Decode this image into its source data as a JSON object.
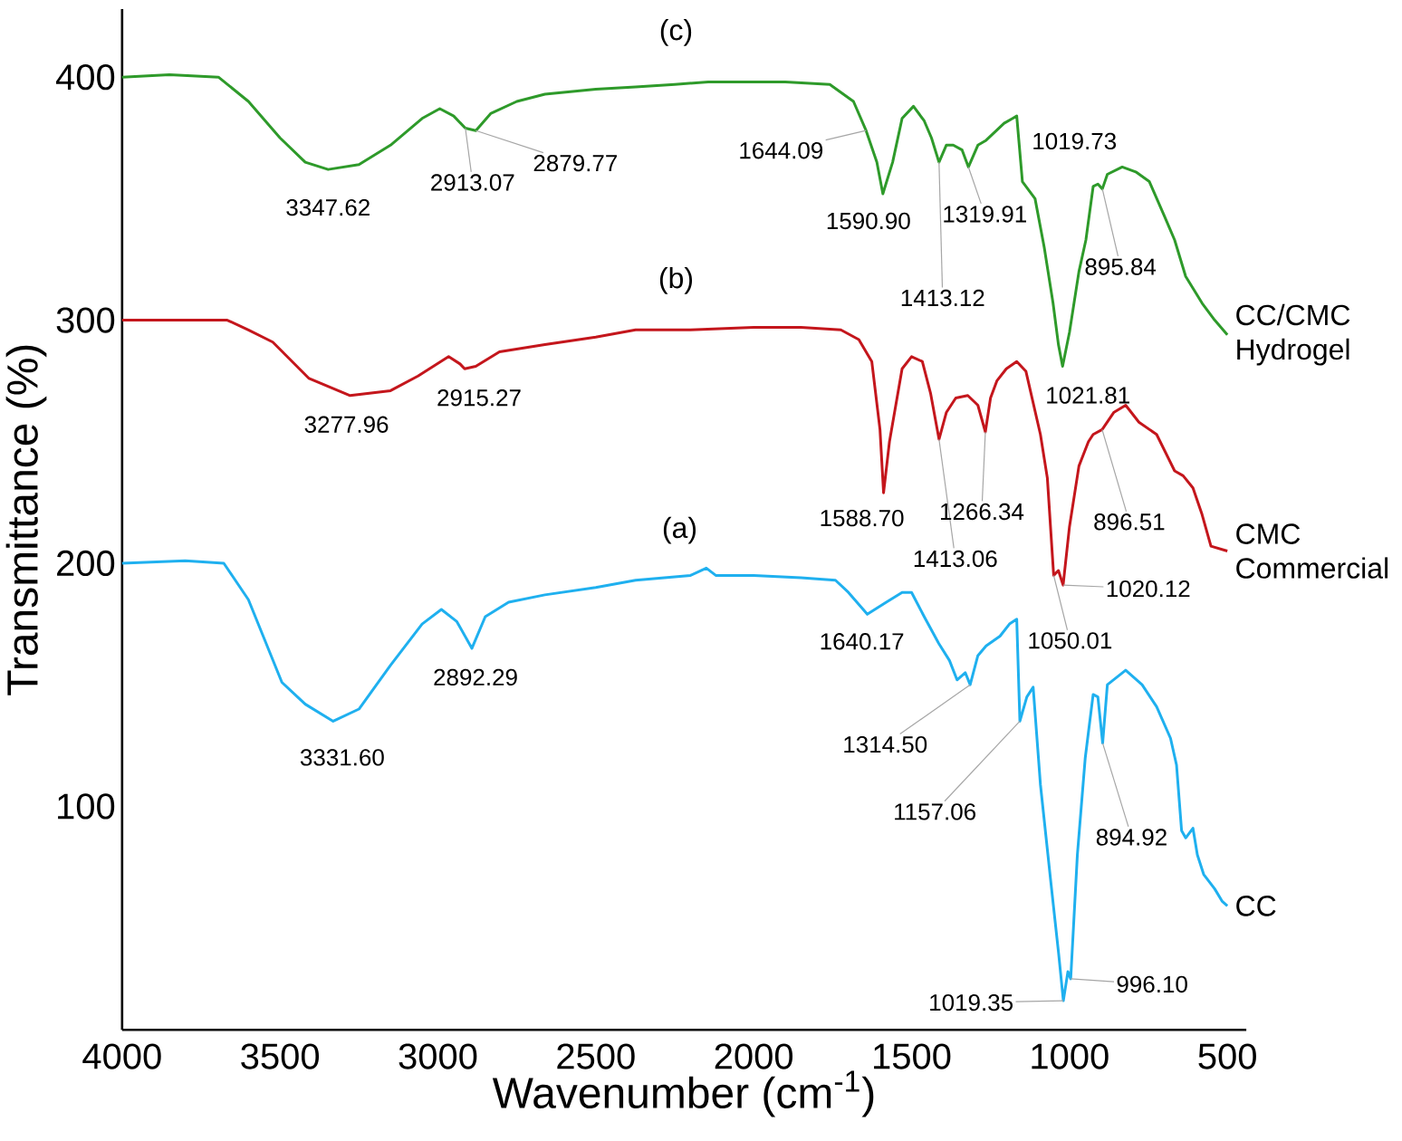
{
  "chart_data": {
    "type": "line",
    "xlabel": "Wavenumber (cm$^{-1}$)",
    "ylabel": "Transmittance (%)",
    "xlim": [
      4000,
      440
    ],
    "ylim": [
      8,
      428
    ],
    "xticks": [
      4000,
      3500,
      3000,
      2500,
      2000,
      1500,
      1000,
      500
    ],
    "yticks": [
      100,
      200,
      300,
      400
    ],
    "series": [
      {
        "name": "CC",
        "color": "#1fb0ef",
        "x": [
          4000,
          3800,
          3678,
          3600,
          3494,
          3420,
          3331.6,
          3250,
          3150,
          3050,
          2989,
          2940,
          2892.29,
          2850,
          2776,
          2661,
          2500,
          2374,
          2200,
          2150,
          2120,
          2000,
          1850,
          1741,
          1700,
          1640.17,
          1580,
          1530,
          1500,
          1460,
          1414,
          1380,
          1356,
          1330,
          1314.5,
          1290,
          1264,
          1220,
          1190,
          1167,
          1157.06,
          1135,
          1115,
          1092,
          1060,
          1034,
          1019.35,
          1005,
          996.1,
          975,
          950,
          925,
          910,
          894.92,
          880,
          822,
          770,
          724,
          680,
          661,
          645,
          632,
          609,
          595,
          575,
          540,
          517,
          500
        ],
        "values": [
          200,
          201,
          200,
          185,
          151,
          142,
          135,
          140,
          158,
          175,
          181,
          176,
          165,
          178,
          184,
          187,
          190,
          193,
          195,
          198,
          195,
          195,
          194,
          193,
          188,
          179,
          184,
          188,
          188,
          178,
          167,
          160,
          152,
          155,
          150,
          162,
          166,
          170,
          175,
          177,
          135,
          145,
          149,
          109,
          70,
          39,
          20,
          32,
          29,
          80,
          120,
          146,
          145,
          126,
          150,
          156,
          150,
          141,
          128,
          117,
          90,
          87,
          91,
          80,
          72,
          66,
          61,
          59
        ]
      },
      {
        "name": "CMC Commercial",
        "color": "#c4161c",
        "x": [
          4000,
          3800,
          3667,
          3600,
          3523,
          3408,
          3277.96,
          3150,
          3063,
          2966,
          2930,
          2915.27,
          2880,
          2805,
          2661,
          2500,
          2374,
          2200,
          2000,
          1850,
          1724,
          1667,
          1626,
          1600,
          1588.7,
          1570,
          1530,
          1500,
          1466,
          1440,
          1413.06,
          1390,
          1360,
          1322,
          1290,
          1266.34,
          1250,
          1230,
          1200,
          1167,
          1138,
          1092,
          1070,
          1050.01,
          1035,
          1020.12,
          1000,
          970,
          940,
          925,
          896.51,
          860,
          822,
          780,
          724,
          667,
          640,
          609,
          580,
          552,
          500
        ],
        "values": [
          300,
          300,
          300,
          296,
          291,
          276,
          269,
          271,
          277,
          285,
          282,
          280,
          281,
          287,
          290,
          293,
          296,
          296,
          297,
          297,
          296,
          292,
          283,
          255,
          229,
          250,
          280,
          285,
          283,
          270,
          251,
          262,
          268,
          269,
          265,
          254,
          268,
          275,
          280,
          283,
          279,
          253,
          235,
          195,
          197,
          191,
          215,
          240,
          250,
          253,
          255,
          262,
          265,
          258,
          253,
          238,
          236,
          231,
          220,
          207,
          205
        ]
      },
      {
        "name": "CC/CMC Hydrogel",
        "color": "#2e9a2a",
        "x": [
          4000,
          3850,
          3695,
          3600,
          3500,
          3420,
          3347.62,
          3250,
          3150,
          3050,
          2994,
          2950,
          2913.07,
          2879.77,
          2833,
          2750,
          2661,
          2500,
          2374,
          2250,
          2144,
          2000,
          1900,
          1759,
          1684,
          1644.09,
          1610,
          1590.9,
          1560,
          1530,
          1494,
          1460,
          1437,
          1413.12,
          1390,
          1368,
          1340,
          1319.91,
          1290,
          1264,
          1207,
          1180,
          1167,
          1149,
          1109,
          1080,
          1052,
          1035,
          1021.81,
          1000,
          970,
          948,
          925,
          910,
          895.84,
          880,
          833,
          790,
          747,
          700,
          667,
          632,
          580,
          540,
          500
        ],
        "values": [
          400,
          401,
          400,
          390,
          375,
          365,
          362,
          364,
          372,
          383,
          387,
          384,
          379,
          378,
          385,
          390,
          393,
          395,
          396,
          397,
          398,
          398,
          398,
          397,
          390,
          378,
          365,
          352,
          365,
          383,
          388,
          382,
          375,
          365,
          372,
          372,
          370,
          363,
          372,
          374,
          381,
          383,
          384,
          357,
          350,
          330,
          307,
          290,
          281,
          295,
          320,
          333,
          355,
          356,
          354,
          360,
          363,
          361,
          357,
          343,
          333,
          318,
          307,
          300,
          294
        ]
      }
    ],
    "annotations": [
      {
        "text": "3347.62",
        "x": 3347.62,
        "y": 362
      },
      {
        "text": "2913.07",
        "x": 2913.07,
        "y": 379
      },
      {
        "text": "2879.77",
        "x": 2879.77,
        "y": 378
      },
      {
        "text": "1644.09",
        "x": 1644.09,
        "y": 378
      },
      {
        "text": "1590.90",
        "x": 1590.9,
        "y": 352
      },
      {
        "text": "1413.12",
        "x": 1413.12,
        "y": 365
      },
      {
        "text": "1319.91",
        "x": 1319.91,
        "y": 363
      },
      "1019.73",
      {
        "text": "895.84",
        "x": 895.84,
        "y": 354
      },
      {
        "text": "1021.81",
        "x": 1021.81,
        "y": 281
      },
      {
        "text": "3277.96",
        "x": 3277.96,
        "y": 269
      },
      {
        "text": "2915.27",
        "x": 2915.27,
        "y": 280
      },
      {
        "text": "1588.70",
        "x": 1588.7,
        "y": 229
      },
      {
        "text": "1413.06",
        "x": 1413.06,
        "y": 251
      },
      {
        "text": "1266.34",
        "x": 1266.34,
        "y": 254
      },
      {
        "text": "1050.01",
        "x": 1050.01,
        "y": 195
      },
      {
        "text": "1020.12",
        "x": 1020.12,
        "y": 191
      },
      {
        "text": "896.51",
        "x": 896.51,
        "y": 255
      },
      {
        "text": "3331.60",
        "x": 3331.6,
        "y": 135
      },
      {
        "text": "2892.29",
        "x": 2892.29,
        "y": 165
      },
      {
        "text": "1640.17",
        "x": 1640.17,
        "y": 179
      },
      {
        "text": "1314.50",
        "x": 1314.5,
        "y": 150
      },
      {
        "text": "1157.06",
        "x": 1157.06,
        "y": 135
      },
      {
        "text": "1019.35",
        "x": 1019.35,
        "y": 20
      },
      {
        "text": "996.10",
        "x": 996.1,
        "y": 29
      },
      {
        "text": "894.92",
        "x": 894.92,
        "y": 126
      },
      "(c)",
      "(b)",
      "(a)"
    ]
  }
}
